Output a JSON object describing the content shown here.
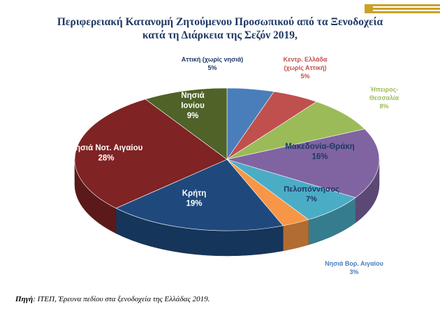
{
  "header": {
    "title_line1": "Περιφερειακή Κατανομή Ζητούμενου Προσωπικού από τα Ξενοδοχεία",
    "title_line2": "κατά τη Διάρκεια της Σεζόν 2019,"
  },
  "footer": {
    "source_label": "Πηγή",
    "source_text": ": ΙΤΕΠ, Έρευνα πεδίου στα ξενοδοχεία της Ελλάδας 2019."
  },
  "chart_data": {
    "type": "pie",
    "title": "Περιφερειακή Κατανομή Ζητούμενου Προσωπικού από τα Ξενοδοχεία κατά τη Διάρκεια της Σεζόν 2019,",
    "unit": "%",
    "slices": [
      {
        "label": "Αττική (χωρίς νησιά)",
        "value": 5,
        "display": "5%",
        "color": "#4a7ebb"
      },
      {
        "label": "Κεντρ. Ελλάδα (χωρίς Αττική)",
        "value": 5,
        "display": "5%",
        "color": "#c0504d"
      },
      {
        "label": "Ήπειρος-Θεσσαλία",
        "value": 8,
        "display": "8%",
        "color": "#9bbb59"
      },
      {
        "label": "Μακεδονία-Θράκη",
        "value": 16,
        "display": "16%",
        "color": "#8064a2"
      },
      {
        "label": "Πελοπόννησος",
        "value": 7,
        "display": "7%",
        "color": "#4bacc6"
      },
      {
        "label": "Νησιά Βορ. Αιγαίου",
        "value": 3,
        "display": "3%",
        "color": "#f79646"
      },
      {
        "label": "Κρήτη",
        "value": 19,
        "display": "19%",
        "color": "#1f497d"
      },
      {
        "label": "Νησιά Νοτ. Αιγαίου",
        "value": 28,
        "display": "28%",
        "color": "#7f2324"
      },
      {
        "label": "Νησιά Ιονίου",
        "value": 9,
        "display": "9%",
        "color": "#4f6228"
      }
    ]
  }
}
